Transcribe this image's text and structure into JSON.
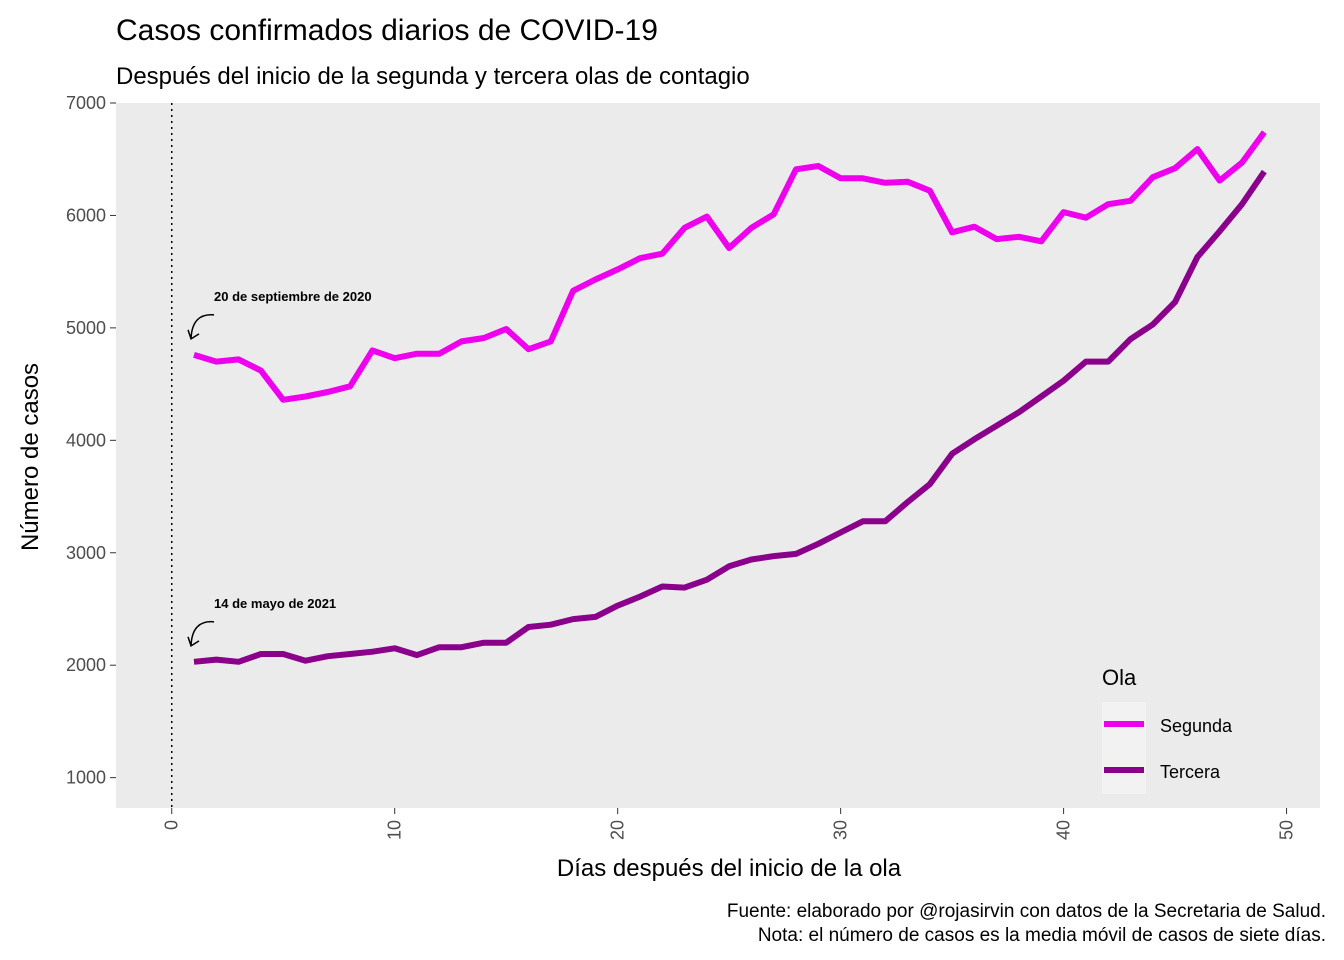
{
  "chart_data": {
    "type": "line",
    "title": "Casos confirmados diarios de COVID-19",
    "subtitle": "Después del inicio de la segunda y tercera olas de contagio",
    "xlabel": "Días después del inicio de la ola",
    "ylabel": "Número de casos",
    "xlim": [
      -2.5,
      51.5
    ],
    "ylim": [
      730,
      7000
    ],
    "x_ticks": [
      0,
      10,
      20,
      30,
      40,
      50
    ],
    "y_ticks": [
      1000,
      2000,
      3000,
      4000,
      5000,
      6000,
      7000
    ],
    "grid": false,
    "panel_background": "#ebebeb",
    "vline": {
      "x": 0,
      "style": "dotted"
    },
    "legend": {
      "title": "Ola",
      "placement": "bottom-right",
      "items": [
        {
          "label": "Segunda",
          "color": "#ee00ee"
        },
        {
          "label": "Tercera",
          "color": "#8b008b"
        }
      ]
    },
    "series": [
      {
        "name": "Segunda",
        "color": "#ee00ee",
        "x": [
          1,
          2,
          3,
          4,
          5,
          6,
          7,
          8,
          9,
          10,
          11,
          12,
          13,
          14,
          15,
          16,
          17,
          18,
          19,
          20,
          21,
          22,
          23,
          24,
          25,
          26,
          27,
          28,
          29,
          30,
          31,
          32,
          33,
          34,
          35,
          36,
          37,
          38,
          39,
          40,
          41,
          42,
          43,
          44,
          45,
          46,
          47,
          48,
          49
        ],
        "values": [
          4760,
          4700,
          4720,
          4620,
          4360,
          4390,
          4430,
          4480,
          4800,
          4730,
          4770,
          4770,
          4880,
          4910,
          4990,
          4810,
          4880,
          5330,
          5430,
          5520,
          5620,
          5660,
          5890,
          5990,
          5710,
          5890,
          6010,
          6410,
          6440,
          6330,
          6330,
          6290,
          6300,
          6220,
          5850,
          5900,
          5790,
          5810,
          5770,
          6030,
          5980,
          6100,
          6130,
          6340,
          6420,
          6590,
          6310,
          6470,
          6740
        ]
      },
      {
        "name": "Tercera",
        "color": "#8b008b",
        "x": [
          1,
          2,
          3,
          4,
          5,
          6,
          7,
          8,
          9,
          10,
          11,
          12,
          13,
          14,
          15,
          16,
          17,
          18,
          19,
          20,
          21,
          22,
          23,
          24,
          25,
          26,
          27,
          28,
          29,
          30,
          31,
          32,
          33,
          34,
          35,
          36,
          37,
          38,
          39,
          40,
          41,
          42,
          43,
          44,
          45,
          46,
          47,
          48,
          49
        ],
        "values": [
          2030,
          2050,
          2030,
          2100,
          2100,
          2040,
          2080,
          2100,
          2120,
          2150,
          2090,
          2160,
          2160,
          2200,
          2200,
          2340,
          2360,
          2410,
          2430,
          2530,
          2610,
          2700,
          2690,
          2760,
          2880,
          2940,
          2970,
          2990,
          3080,
          3180,
          3280,
          3280,
          3450,
          3610,
          3880,
          4010,
          4130,
          4250,
          4390,
          4530,
          4700,
          4700,
          4900,
          5030,
          5230,
          5630,
          5860,
          6100,
          6390
        ]
      }
    ],
    "annotations": [
      {
        "text": "20 de septiembre de 2020",
        "x": 1,
        "y": 4760
      },
      {
        "text": "14 de mayo de 2021",
        "x": 1,
        "y": 2030
      }
    ],
    "caption": [
      "Fuente: elaborado por @rojasirvin con datos de la Secretaria de Salud.",
      "Nota: el número de casos es la media móvil de casos de siete días."
    ]
  }
}
